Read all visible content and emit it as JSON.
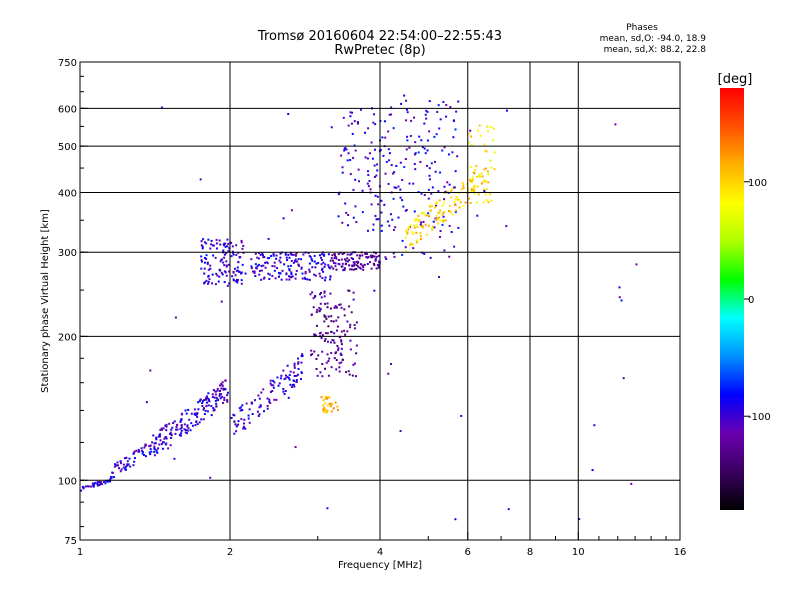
{
  "chart_data": {
    "type": "scatter",
    "title": "Tromsø 20160604 22:54:00–22:55:43",
    "subtitle": "RwPretec (8p)",
    "xlabel": "Frequency [MHz]",
    "ylabel": "Stationary phase Virtual Height [km]",
    "x_scale": "log",
    "y_scale": "log",
    "xlim": [
      1,
      16
    ],
    "ylim": [
      75,
      750
    ],
    "x_ticks": [
      1,
      2,
      4,
      6,
      8,
      10,
      16
    ],
    "x_tick_labels": [
      "1",
      "2",
      "4",
      "6",
      "8",
      "10",
      "16"
    ],
    "y_ticks": [
      75,
      100,
      200,
      300,
      400,
      500,
      600,
      750
    ],
    "y_tick_labels": [
      "75",
      "100",
      "200",
      "300",
      "400",
      "500",
      "600",
      "750"
    ],
    "x_grid": [
      2,
      4,
      6,
      8,
      10
    ],
    "y_grid": [
      100,
      200,
      300,
      400,
      500,
      600
    ],
    "grid": true,
    "phases_box": {
      "title": "Phases",
      "line_o": "mean, sd,O:  -94.0, 18.9",
      "line_x": "mean, sd,X:  88.2, 22.8"
    },
    "colorbar": {
      "label": "[deg]",
      "range": [
        -180,
        180
      ],
      "ticks": [
        -100,
        0,
        100
      ],
      "tick_labels": [
        "-100",
        "0",
        "100"
      ],
      "colors": [
        "#000000",
        "#3a0060",
        "#6a00b0",
        "#0000ff",
        "#0090ff",
        "#00ffff",
        "#00ff00",
        "#b0ff00",
        "#ffff00",
        "#ffb000",
        "#ff5000",
        "#ff0000"
      ]
    },
    "groups": [
      {
        "name": "low_trace",
        "x0": 1.0,
        "x1": 1.15,
        "y0": 95,
        "y1": 101,
        "n": 40,
        "phase": -95
      },
      {
        "name": "low_trace2",
        "x0": 1.15,
        "x1": 1.45,
        "y0": 100,
        "y1": 125,
        "n": 70,
        "phase": -95
      },
      {
        "name": "E_rise",
        "x0": 1.4,
        "x1": 2.0,
        "y0": 110,
        "y1": 165,
        "n": 170,
        "phase": -100
      },
      {
        "name": "E_rise2",
        "x0": 2.0,
        "x1": 2.8,
        "y0": 120,
        "y1": 185,
        "n": 110,
        "phase": -100
      },
      {
        "name": "F_left",
        "x0": 1.75,
        "x1": 2.15,
        "y0": 255,
        "y1": 320,
        "n": 130,
        "phase": -100
      },
      {
        "name": "F_mid",
        "x0": 2.2,
        "x1": 3.2,
        "y0": 262,
        "y1": 300,
        "n": 160,
        "phase": -100
      },
      {
        "name": "F_mid2",
        "x0": 3.2,
        "x1": 4.0,
        "y0": 275,
        "y1": 300,
        "n": 110,
        "phase": -120
      },
      {
        "name": "F_cluster",
        "x0": 2.9,
        "x1": 3.6,
        "y0": 165,
        "y1": 250,
        "n": 140,
        "phase": -125
      },
      {
        "name": "F_cluster_g",
        "x0": 3.05,
        "x1": 3.3,
        "y0": 138,
        "y1": 150,
        "n": 30,
        "phase": 110
      },
      {
        "name": "F_upper",
        "x0": 3.3,
        "x1": 4.1,
        "y0": 330,
        "y1": 600,
        "n": 90,
        "phase": -100
      },
      {
        "name": "F_upper2",
        "x0": 4.1,
        "x1": 5.8,
        "y0": 290,
        "y1": 640,
        "n": 150,
        "phase": -95
      },
      {
        "name": "X_trace",
        "x0": 4.5,
        "x1": 6.6,
        "y0": 300,
        "y1": 470,
        "n": 140,
        "phase": 100
      },
      {
        "name": "X_upper",
        "x0": 6.0,
        "x1": 6.8,
        "y0": 380,
        "y1": 560,
        "n": 40,
        "phase": 90
      },
      {
        "name": "sparse",
        "x0": 1.3,
        "x1": 14.0,
        "y0": 80,
        "y1": 620,
        "n": 45,
        "phase": -100
      }
    ]
  }
}
